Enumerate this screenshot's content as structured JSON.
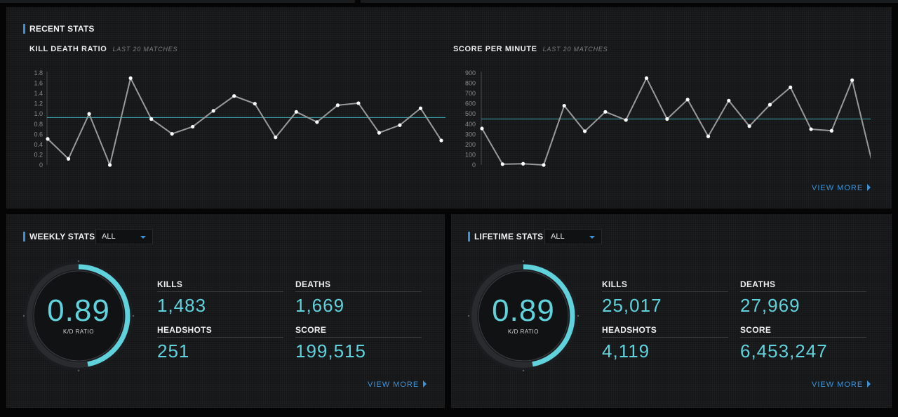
{
  "recent": {
    "title": "RECENT STATS",
    "view_more": "VIEW MORE",
    "kd_title": "KILL DEATH RATIO",
    "kd_sub": "LAST 20 MATCHES",
    "spm_title": "SCORE PER MINUTE",
    "spm_sub": "LAST 20 MATCHES"
  },
  "chart_data": [
    {
      "type": "line",
      "title": "KILL DEATH RATIO",
      "subtitle": "LAST 20 MATCHES",
      "yticks": [
        "0",
        "0.2",
        "0.4",
        "0.6",
        "0.8",
        "1.0",
        "1.2",
        "1.4",
        "1.6",
        "1.8"
      ],
      "ylim": [
        0,
        1.8
      ],
      "values": [
        0.51,
        0.12,
        1.0,
        0.0,
        1.7,
        0.9,
        0.61,
        0.75,
        1.06,
        1.35,
        1.2,
        0.54,
        1.04,
        0.84,
        1.17,
        1.21,
        0.63,
        0.78,
        1.11,
        0.48
      ],
      "average": 0.93,
      "line_color": "#9a9a9a",
      "average_color": "#3fa9b5"
    },
    {
      "type": "line",
      "title": "SCORE PER MINUTE",
      "subtitle": "LAST 20 MATCHES",
      "yticks": [
        "0",
        "100",
        "200",
        "300",
        "400",
        "500",
        "600",
        "700",
        "800",
        "900"
      ],
      "ylim": [
        0,
        900
      ],
      "values": [
        357,
        8,
        12,
        0,
        580,
        330,
        520,
        440,
        850,
        450,
        640,
        280,
        630,
        380,
        590,
        760,
        350,
        335,
        830,
        0
      ],
      "average": 450,
      "line_color": "#9a9a9a",
      "average_color": "#3fa9b5"
    }
  ],
  "weekly": {
    "title": "WEEKLY STATS",
    "filter": "ALL",
    "gauge_value": "0.89",
    "gauge_label": "K/D RATIO",
    "gauge_fill": 0.47,
    "kills_label": "KILLS",
    "kills": "1,483",
    "deaths_label": "DEATHS",
    "deaths": "1,669",
    "headshots_label": "HEADSHOTS",
    "headshots": "251",
    "score_label": "SCORE",
    "score": "199,515",
    "view_more": "VIEW MORE"
  },
  "lifetime": {
    "title": "LIFETIME STATS",
    "filter": "ALL",
    "gauge_value": "0.89",
    "gauge_label": "K/D RATIO",
    "gauge_fill": 0.47,
    "kills_label": "KILLS",
    "kills": "25,017",
    "deaths_label": "DEATHS",
    "deaths": "27,969",
    "headshots_label": "HEADSHOTS",
    "headshots": "4,119",
    "score_label": "SCORE",
    "score": "6,453,247",
    "view_more": "VIEW MORE"
  },
  "colors": {
    "accent": "#5fd2dc",
    "link": "#3b94d9",
    "panel": "#151618",
    "background": "#050506"
  },
  "icons": {
    "view_more": "caret-right-icon",
    "dropdown": "caret-down-icon"
  }
}
